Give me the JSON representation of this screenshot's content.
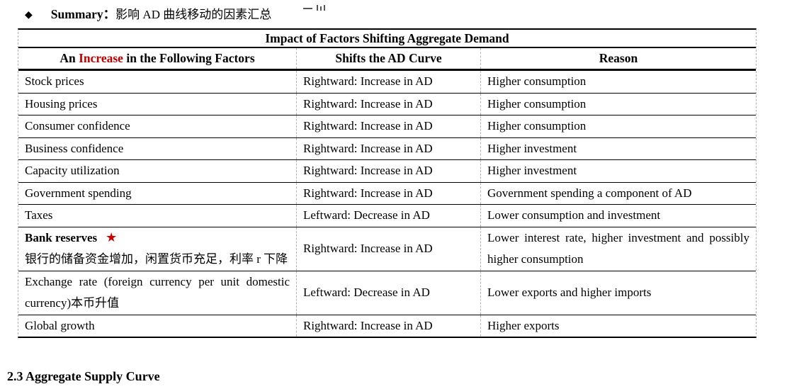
{
  "summary": {
    "bullet": "◆",
    "label": "Summary：",
    "text": "影响 AD 曲线移动的因素汇总"
  },
  "table": {
    "title": "Impact of Factors Shifting Aggregate Demand",
    "headers": {
      "col1_prefix": "An ",
      "col1_highlight": "Increase",
      "col1_suffix": " in the Following Factors",
      "col2": "Shifts the AD Curve",
      "col3": "Reason"
    },
    "rows": [
      {
        "factor": "Stock prices",
        "shift": "Rightward: Increase in AD",
        "reason": "Higher consumption"
      },
      {
        "factor": "Housing prices",
        "shift": "Rightward: Increase in AD",
        "reason": "Higher consumption"
      },
      {
        "factor": "Consumer confidence",
        "shift": "Rightward: Increase in AD",
        "reason": "Higher consumption"
      },
      {
        "factor": "Business confidence",
        "shift": "Rightward: Increase in AD",
        "reason": "Higher investment"
      },
      {
        "factor": "Capacity utilization",
        "shift": "Rightward: Increase in AD",
        "reason": "Higher investment"
      },
      {
        "factor": "Government spending",
        "shift": "Rightward: Increase in AD",
        "reason": "Government spending a component of AD"
      },
      {
        "factor": "Taxes",
        "shift": "Leftward: Decrease in AD",
        "reason": "Lower consumption and investment"
      },
      {
        "factor_bold": "Bank reserves",
        "star": "★",
        "factor_note": "银行的储备资金增加，闲置货币充足，利率 r 下降",
        "shift": "Rightward: Increase in AD",
        "reason": "Lower interest rate, higher investment and possibly higher consumption"
      },
      {
        "factor": "Exchange rate (foreign currency per unit domestic currency)本币升值",
        "shift": "Leftward: Decrease in AD",
        "reason": "Lower exports and higher imports"
      },
      {
        "factor": "Global growth",
        "shift": "Rightward: Increase in AD",
        "reason": "Higher exports"
      }
    ]
  },
  "footer_heading": "2.3 Aggregate Supply Curve",
  "colors": {
    "accent_red": "#c00000"
  }
}
